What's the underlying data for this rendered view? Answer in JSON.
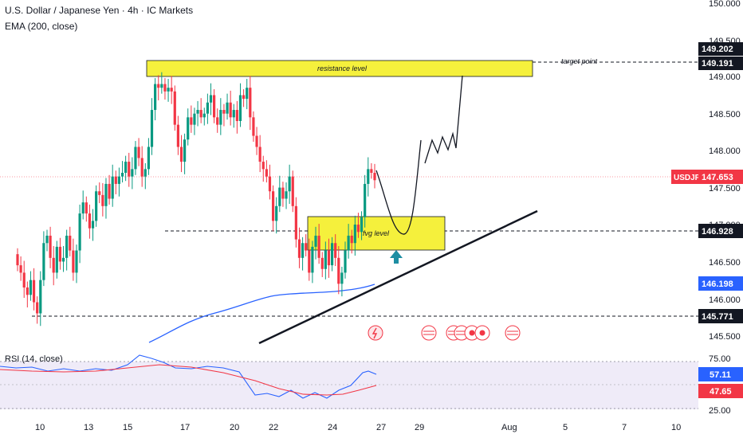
{
  "header": {
    "title": "U.S. Dollar / Japanese Yen · 4h · IC Markets",
    "indicator": "EMA (200, close)"
  },
  "rsi": {
    "label": "RSI (14, close)",
    "ticks": [
      "75.00",
      "25.00"
    ],
    "value_blue": "57.11",
    "value_red": "47.65",
    "blue_color": "#2962ff",
    "red_color": "#f23645"
  },
  "price_axis": {
    "ticks": [
      "150.000",
      "149.500",
      "149.000",
      "148.500",
      "148.000",
      "147.500",
      "147.000",
      "146.500",
      "146.000",
      "145.500"
    ],
    "badges": [
      {
        "text": "149.202",
        "color": "#131722"
      },
      {
        "text": "149.191",
        "color": "#131722"
      },
      {
        "text": "147.653",
        "color": "#f23645"
      },
      {
        "text": "146.928",
        "color": "#131722"
      },
      {
        "text": "146.198",
        "color": "#2962ff"
      },
      {
        "text": "145.771",
        "color": "#131722"
      }
    ],
    "symbol_badge": "USDJPY"
  },
  "time_axis": {
    "ticks": [
      "10",
      "13",
      "15",
      "17",
      "20",
      "22",
      "24",
      "27",
      "29",
      "Aug",
      "5",
      "7",
      "10"
    ]
  },
  "annotations": {
    "resistance": "resistance level",
    "fvg": "fvg level",
    "target": "target point"
  },
  "colors": {
    "up": "#089981",
    "down": "#f23645",
    "zone_fill": "#f5f03c",
    "ema_line": "#2962ff",
    "arrow": "#1d8ea3"
  },
  "chart_data": {
    "type": "candlestick",
    "symbol": "USDJPY",
    "timeframe": "4h",
    "ylim": [
      145.3,
      150.0
    ],
    "current_price": 147.653,
    "levels": [
      149.202,
      149.191,
      146.928,
      145.771
    ],
    "ema200_last": 146.198,
    "resistance_zone": [
      149.0,
      149.22
    ],
    "fvg_zone": [
      146.68,
      147.12
    ],
    "closes": [
      146.5,
      146.4,
      146.2,
      146.1,
      146.3,
      146.0,
      145.85,
      146.3,
      146.8,
      146.9,
      146.6,
      146.4,
      146.75,
      146.55,
      146.6,
      146.9,
      146.7,
      146.4,
      146.7,
      147.2,
      147.35,
      147.2,
      147.0,
      147.1,
      147.5,
      147.45,
      147.3,
      147.6,
      147.4,
      147.7,
      147.6,
      147.7,
      147.75,
      147.9,
      147.7,
      147.8,
      148.1,
      147.95,
      147.7,
      147.8,
      148.1,
      148.6,
      148.95,
      148.9,
      148.95,
      148.85,
      148.9,
      148.85,
      148.4,
      148.1,
      147.9,
      148.2,
      148.5,
      148.4,
      148.55,
      148.6,
      148.5,
      148.55,
      148.7,
      148.8,
      148.5,
      148.4,
      148.6,
      148.55,
      148.7,
      148.5,
      148.6,
      148.45,
      148.8,
      148.75,
      148.9,
      148.5,
      148.25,
      148.1,
      147.9,
      147.8,
      147.7,
      147.5,
      147.1,
      147.3,
      147.55,
      147.4,
      147.5,
      147.7,
      147.3,
      146.85,
      146.6,
      146.8,
      146.7,
      146.4,
      146.75,
      146.9,
      146.6,
      146.45,
      146.7,
      146.5,
      146.8,
      146.6,
      146.25,
      146.4,
      146.7,
      146.9,
      146.8,
      147.05,
      146.95,
      147.15,
      147.6,
      147.8,
      147.75,
      147.65
    ]
  }
}
